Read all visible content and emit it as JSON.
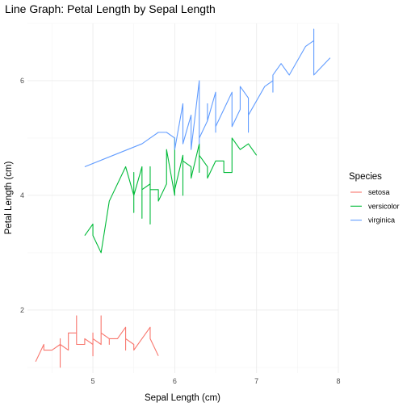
{
  "chart_data": {
    "type": "line",
    "title": "Line Graph: Petal Length by Sepal Length",
    "xlabel": "Sepal Length (cm)",
    "ylabel": "Petal Length (cm)",
    "xlim": [
      4.2,
      8.0
    ],
    "ylim": [
      0.9,
      7.0
    ],
    "x_ticks": [
      5,
      6,
      7,
      8
    ],
    "y_ticks": [
      2,
      4,
      6
    ],
    "x_tick_labels": [
      "5",
      "6",
      "7",
      "8"
    ],
    "y_tick_labels": [
      "2",
      "4",
      "6"
    ],
    "grid": true,
    "legend": {
      "title": "Species",
      "position": "right"
    },
    "series": [
      {
        "name": "setosa",
        "color": "#F8766D",
        "points": [
          [
            4.3,
            1.1
          ],
          [
            4.4,
            1.4
          ],
          [
            4.4,
            1.3
          ],
          [
            4.4,
            1.3
          ],
          [
            4.5,
            1.3
          ],
          [
            4.6,
            1.4
          ],
          [
            4.6,
            1.0
          ],
          [
            4.6,
            1.5
          ],
          [
            4.6,
            1.4
          ],
          [
            4.7,
            1.3
          ],
          [
            4.7,
            1.6
          ],
          [
            4.8,
            1.6
          ],
          [
            4.8,
            1.4
          ],
          [
            4.8,
            1.9
          ],
          [
            4.8,
            1.6
          ],
          [
            4.8,
            1.4
          ],
          [
            4.9,
            1.4
          ],
          [
            4.9,
            1.5
          ],
          [
            4.9,
            1.4
          ],
          [
            4.9,
            1.5
          ],
          [
            5.0,
            1.4
          ],
          [
            5.0,
            1.2
          ],
          [
            5.0,
            1.6
          ],
          [
            5.0,
            1.3
          ],
          [
            5.0,
            1.4
          ],
          [
            5.0,
            1.5
          ],
          [
            5.0,
            1.6
          ],
          [
            5.0,
            1.5
          ],
          [
            5.1,
            1.4
          ],
          [
            5.1,
            1.9
          ],
          [
            5.1,
            1.5
          ],
          [
            5.1,
            1.5
          ],
          [
            5.1,
            1.4
          ],
          [
            5.1,
            1.4
          ],
          [
            5.1,
            1.5
          ],
          [
            5.1,
            1.6
          ],
          [
            5.2,
            1.5
          ],
          [
            5.2,
            1.4
          ],
          [
            5.2,
            1.5
          ],
          [
            5.3,
            1.5
          ],
          [
            5.4,
            1.7
          ],
          [
            5.4,
            1.7
          ],
          [
            5.4,
            1.5
          ],
          [
            5.4,
            1.3
          ],
          [
            5.4,
            1.5
          ],
          [
            5.5,
            1.4
          ],
          [
            5.5,
            1.3
          ],
          [
            5.7,
            1.7
          ],
          [
            5.7,
            1.5
          ],
          [
            5.8,
            1.2
          ]
        ]
      },
      {
        "name": "versicolor",
        "color": "#00BA38",
        "points": [
          [
            4.9,
            3.3
          ],
          [
            5.0,
            3.5
          ],
          [
            5.0,
            3.3
          ],
          [
            5.1,
            3.0
          ],
          [
            5.2,
            3.9
          ],
          [
            5.4,
            4.5
          ],
          [
            5.5,
            4.0
          ],
          [
            5.5,
            3.7
          ],
          [
            5.5,
            4.4
          ],
          [
            5.5,
            4.0
          ],
          [
            5.6,
            4.5
          ],
          [
            5.6,
            3.6
          ],
          [
            5.6,
            3.9
          ],
          [
            5.6,
            4.2
          ],
          [
            5.6,
            4.1
          ],
          [
            5.7,
            4.2
          ],
          [
            5.7,
            4.5
          ],
          [
            5.7,
            3.5
          ],
          [
            5.7,
            4.2
          ],
          [
            5.7,
            4.1
          ],
          [
            5.8,
            4.1
          ],
          [
            5.8,
            4.0
          ],
          [
            5.8,
            3.9
          ],
          [
            5.9,
            4.2
          ],
          [
            5.9,
            4.8
          ],
          [
            6.0,
            4.0
          ],
          [
            6.0,
            4.5
          ],
          [
            6.0,
            5.0
          ],
          [
            6.0,
            4.5
          ],
          [
            6.0,
            4.1
          ],
          [
            6.1,
            4.7
          ],
          [
            6.1,
            4.0
          ],
          [
            6.1,
            4.7
          ],
          [
            6.1,
            4.6
          ],
          [
            6.2,
            4.5
          ],
          [
            6.2,
            4.3
          ],
          [
            6.3,
            4.9
          ],
          [
            6.3,
            4.4
          ],
          [
            6.3,
            4.7
          ],
          [
            6.4,
            4.5
          ],
          [
            6.4,
            4.3
          ],
          [
            6.5,
            4.6
          ],
          [
            6.6,
            4.6
          ],
          [
            6.6,
            4.4
          ],
          [
            6.7,
            4.4
          ],
          [
            6.7,
            4.7
          ],
          [
            6.7,
            5.0
          ],
          [
            6.8,
            4.8
          ],
          [
            6.9,
            4.9
          ],
          [
            7.0,
            4.7
          ]
        ]
      },
      {
        "name": "virginica",
        "color": "#619CFF",
        "points": [
          [
            4.9,
            4.5
          ],
          [
            5.6,
            4.9
          ],
          [
            5.7,
            5.0
          ],
          [
            5.8,
            5.1
          ],
          [
            5.8,
            5.1
          ],
          [
            5.8,
            5.1
          ],
          [
            5.9,
            5.1
          ],
          [
            6.0,
            5.0
          ],
          [
            6.0,
            4.8
          ],
          [
            6.1,
            5.6
          ],
          [
            6.1,
            4.9
          ],
          [
            6.2,
            5.4
          ],
          [
            6.2,
            4.8
          ],
          [
            6.3,
            6.0
          ],
          [
            6.3,
            4.9
          ],
          [
            6.3,
            5.1
          ],
          [
            6.3,
            5.6
          ],
          [
            6.3,
            5.6
          ],
          [
            6.3,
            5.0
          ],
          [
            6.4,
            5.3
          ],
          [
            6.4,
            5.5
          ],
          [
            6.4,
            5.6
          ],
          [
            6.4,
            5.3
          ],
          [
            6.5,
            5.8
          ],
          [
            6.5,
            5.1
          ],
          [
            6.5,
            5.5
          ],
          [
            6.5,
            5.2
          ],
          [
            6.7,
            5.8
          ],
          [
            6.7,
            5.7
          ],
          [
            6.7,
            5.6
          ],
          [
            6.7,
            5.2
          ],
          [
            6.8,
            5.5
          ],
          [
            6.8,
            5.9
          ],
          [
            6.9,
            5.7
          ],
          [
            6.9,
            5.1
          ],
          [
            6.9,
            5.4
          ],
          [
            7.1,
            5.9
          ],
          [
            7.2,
            6.0
          ],
          [
            7.2,
            5.8
          ],
          [
            7.2,
            6.1
          ],
          [
            7.3,
            6.3
          ],
          [
            7.4,
            6.1
          ],
          [
            7.6,
            6.6
          ],
          [
            7.7,
            6.7
          ],
          [
            7.7,
            6.9
          ],
          [
            7.7,
            6.7
          ],
          [
            7.7,
            6.1
          ],
          [
            7.9,
            6.4
          ]
        ]
      }
    ]
  }
}
